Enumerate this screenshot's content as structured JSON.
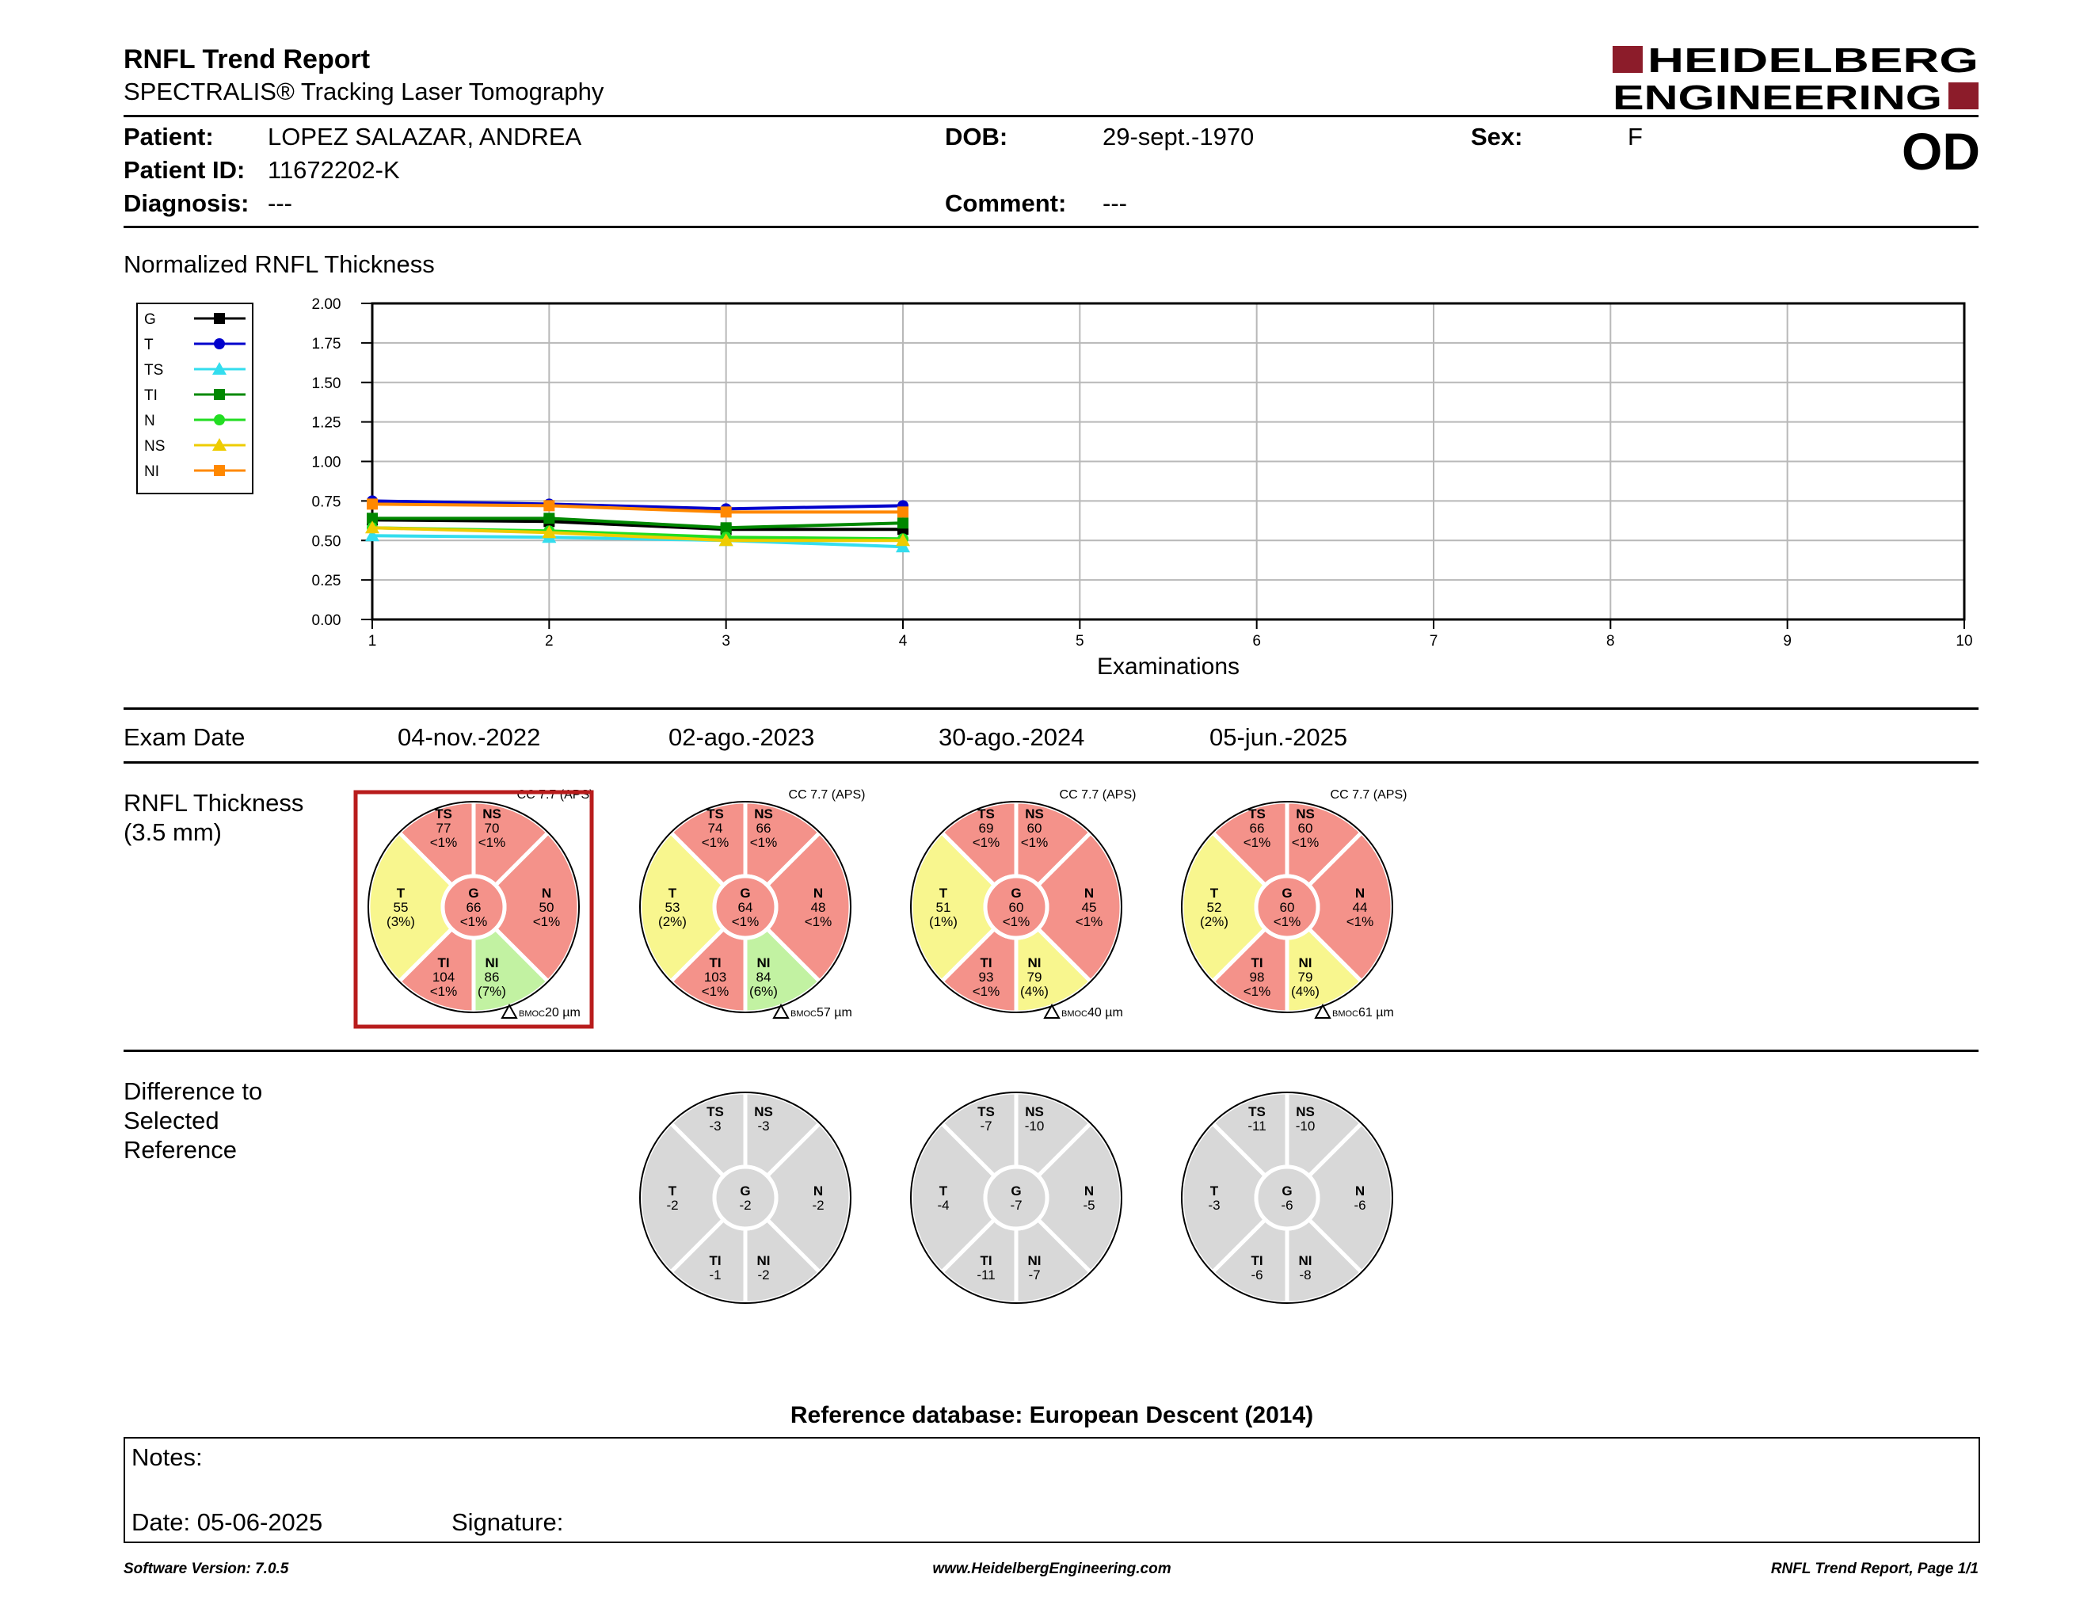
{
  "report": {
    "title": "RNFL Trend Report",
    "subtitle": "SPECTRALIS® Tracking Laser Tomography",
    "logo_line1": "HEIDELBERG",
    "logo_line2": "ENGINEERING",
    "eye": "OD"
  },
  "patient": {
    "name_label": "Patient:",
    "name": "LOPEZ SALAZAR, ANDREA",
    "id_label": "Patient ID:",
    "id": "11672202-K",
    "diagnosis_label": "Diagnosis:",
    "diagnosis": "---",
    "dob_label": "DOB:",
    "dob": "29-sept.-1970",
    "comment_label": "Comment:",
    "comment": "---",
    "sex_label": "Sex:",
    "sex": "F"
  },
  "chart_data": {
    "type": "line",
    "title": "Normalized RNFL Thickness",
    "xlabel": "Examinations",
    "ylabel": "",
    "xlim": [
      1,
      10
    ],
    "ylim": [
      0,
      2
    ],
    "x_ticks": [
      "1",
      "2",
      "3",
      "4",
      "5",
      "6",
      "7",
      "8",
      "9",
      "10"
    ],
    "y_ticks": [
      "0.00",
      "0.25",
      "0.50",
      "0.75",
      "1.00",
      "1.25",
      "1.50",
      "1.75",
      "2.00"
    ],
    "grid": true,
    "legend_position": "left",
    "x": [
      1,
      2,
      3,
      4
    ],
    "series": [
      {
        "name": "G",
        "color": "#000000",
        "marker": "square",
        "values": [
          0.63,
          0.62,
          0.57,
          0.57
        ]
      },
      {
        "name": "T",
        "color": "#0000cc",
        "marker": "circle",
        "values": [
          0.75,
          0.73,
          0.7,
          0.72
        ]
      },
      {
        "name": "TS",
        "color": "#33ddee",
        "marker": "triangle",
        "values": [
          0.53,
          0.52,
          0.5,
          0.46
        ]
      },
      {
        "name": "TI",
        "color": "#008800",
        "marker": "square",
        "values": [
          0.64,
          0.64,
          0.58,
          0.61
        ]
      },
      {
        "name": "N",
        "color": "#22dd22",
        "marker": "circle",
        "values": [
          0.58,
          0.56,
          0.52,
          0.51
        ]
      },
      {
        "name": "NS",
        "color": "#eecc00",
        "marker": "triangle",
        "values": [
          0.58,
          0.55,
          0.5,
          0.5
        ]
      },
      {
        "name": "NI",
        "color": "#ff8800",
        "marker": "square",
        "values": [
          0.73,
          0.72,
          0.68,
          0.68
        ]
      }
    ]
  },
  "exams": {
    "label": "Exam Date",
    "dates": [
      "04-nov.-2022",
      "02-ago.-2023",
      "30-ago.-2024",
      "05-jun.-2025"
    ]
  },
  "thickness": {
    "label_line1": "RNFL Thickness",
    "label_line2": "(3.5 mm)",
    "colors": {
      "red": "#f4928a",
      "yellow": "#f8f68e",
      "green": "#c2f2a2",
      "gray": "#d8d8d8"
    },
    "selected_index": 0,
    "exams": [
      {
        "cc": "CC 7.7 (APS)",
        "bmoc": "20 µm",
        "sectors": {
          "TS": {
            "value": "77",
            "pct": "<1%",
            "color": "red"
          },
          "NS": {
            "value": "70",
            "pct": "<1%",
            "color": "red"
          },
          "N": {
            "value": "50",
            "pct": "<1%",
            "color": "red"
          },
          "NI": {
            "value": "86",
            "pct": "(7%)",
            "color": "green"
          },
          "TI": {
            "value": "104",
            "pct": "<1%",
            "color": "red"
          },
          "T": {
            "value": "55",
            "pct": "(3%)",
            "color": "yellow"
          },
          "G": {
            "value": "66",
            "pct": "<1%",
            "color": "red"
          }
        }
      },
      {
        "cc": "CC 7.7 (APS)",
        "bmoc": "57 µm",
        "sectors": {
          "TS": {
            "value": "74",
            "pct": "<1%",
            "color": "red"
          },
          "NS": {
            "value": "66",
            "pct": "<1%",
            "color": "red"
          },
          "N": {
            "value": "48",
            "pct": "<1%",
            "color": "red"
          },
          "NI": {
            "value": "84",
            "pct": "(6%)",
            "color": "green"
          },
          "TI": {
            "value": "103",
            "pct": "<1%",
            "color": "red"
          },
          "T": {
            "value": "53",
            "pct": "(2%)",
            "color": "yellow"
          },
          "G": {
            "value": "64",
            "pct": "<1%",
            "color": "red"
          }
        }
      },
      {
        "cc": "CC 7.7 (APS)",
        "bmoc": "40 µm",
        "sectors": {
          "TS": {
            "value": "69",
            "pct": "<1%",
            "color": "red"
          },
          "NS": {
            "value": "60",
            "pct": "<1%",
            "color": "red"
          },
          "N": {
            "value": "45",
            "pct": "<1%",
            "color": "red"
          },
          "NI": {
            "value": "79",
            "pct": "(4%)",
            "color": "yellow"
          },
          "TI": {
            "value": "93",
            "pct": "<1%",
            "color": "red"
          },
          "T": {
            "value": "51",
            "pct": "(1%)",
            "color": "yellow"
          },
          "G": {
            "value": "60",
            "pct": "<1%",
            "color": "red"
          }
        }
      },
      {
        "cc": "CC 7.7 (APS)",
        "bmoc": "61 µm",
        "sectors": {
          "TS": {
            "value": "66",
            "pct": "<1%",
            "color": "red"
          },
          "NS": {
            "value": "60",
            "pct": "<1%",
            "color": "red"
          },
          "N": {
            "value": "44",
            "pct": "<1%",
            "color": "red"
          },
          "NI": {
            "value": "79",
            "pct": "(4%)",
            "color": "yellow"
          },
          "TI": {
            "value": "98",
            "pct": "<1%",
            "color": "red"
          },
          "T": {
            "value": "52",
            "pct": "(2%)",
            "color": "yellow"
          },
          "G": {
            "value": "60",
            "pct": "<1%",
            "color": "red"
          }
        }
      }
    ]
  },
  "difference": {
    "label_line1": "Difference to",
    "label_line2": "Selected",
    "label_line3": "Reference",
    "exams": [
      {
        "TS": "-3",
        "NS": "-3",
        "N": "-2",
        "NI": "-2",
        "TI": "-1",
        "T": "-2",
        "G": "-2"
      },
      {
        "TS": "-7",
        "NS": "-10",
        "N": "-5",
        "NI": "-7",
        "TI": "-11",
        "T": "-4",
        "G": "-7"
      },
      {
        "TS": "-11",
        "NS": "-10",
        "N": "-6",
        "NI": "-8",
        "TI": "-6",
        "T": "-3",
        "G": "-6"
      }
    ]
  },
  "reference_db": "Reference database: European Descent (2014)",
  "notes": {
    "notes_label": "Notes:",
    "date_label": "Date: 05-06-2025",
    "signature_label": "Signature:"
  },
  "footer": {
    "version": "Software Version: 7.0.5",
    "website": "www.HeidelbergEngineering.com",
    "page": "RNFL Trend Report, Page 1/1"
  }
}
